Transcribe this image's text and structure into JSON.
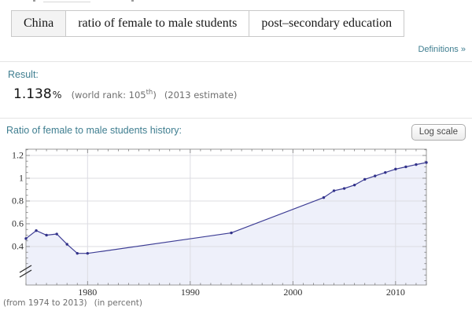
{
  "query_bar": {
    "segments": [
      {
        "label": "China"
      },
      {
        "label": "ratio of female to male students"
      },
      {
        "label": "post–secondary education"
      }
    ]
  },
  "links": {
    "definitions": "Definitions »"
  },
  "result_pod": {
    "title": "Result:",
    "value": "1.138",
    "unit": "%",
    "world_rank_text": "(world rank: 105",
    "world_rank_ordinal": "th",
    "world_rank_close": ")",
    "estimate": "(2013 estimate)"
  },
  "history_pod": {
    "title": "Ratio of female to male students history:",
    "log_scale_button": "Log scale",
    "footnote_range": "(from 1974 to 2013)",
    "footnote_unit": "(in percent)"
  },
  "chart_data": {
    "type": "line",
    "title": "Ratio of female to male students history",
    "x": [
      1974,
      1975,
      1976,
      1977,
      1978,
      1979,
      1980,
      1994,
      2003,
      2004,
      2005,
      2006,
      2007,
      2008,
      2009,
      2010,
      2011,
      2012,
      2013
    ],
    "y": [
      0.47,
      0.54,
      0.5,
      0.51,
      0.42,
      0.34,
      0.34,
      0.52,
      0.83,
      0.89,
      0.91,
      0.94,
      0.99,
      1.02,
      1.05,
      1.08,
      1.1,
      1.12,
      1.138
    ],
    "x_ticks": [
      1980,
      1990,
      2000,
      2010
    ],
    "x_tick_labels": [
      "1980",
      "1990",
      "2000",
      "2010"
    ],
    "y_ticks": [
      0.4,
      0.6,
      0.8,
      1.0,
      1.2
    ],
    "y_tick_labels": [
      "0.4",
      "0.6",
      "0.8",
      "1",
      "1.2"
    ],
    "xlim": [
      1974,
      2013
    ],
    "ylim": [
      0.062,
      1.255
    ],
    "axis_break": true,
    "axis_break_below": 0.3,
    "grid": true,
    "legend": "none",
    "line_color": "#3c3c94",
    "marker_color": "#32328a",
    "fill_color": "#eef0fa",
    "grid_color": "#dcdce2",
    "frame_color": "#9a9a9a",
    "tick_color": "#7d7d7d",
    "label_color": "#2e2e2e"
  },
  "colors": {
    "accent_teal": "#3f7e90",
    "text_dark": "#111111",
    "text_gray": "#6e6e6e",
    "divider": "#e4e4e4",
    "input_border": "#c9c9c9",
    "input_first_bg": "#f3f3f3",
    "button_border": "#adadad"
  }
}
